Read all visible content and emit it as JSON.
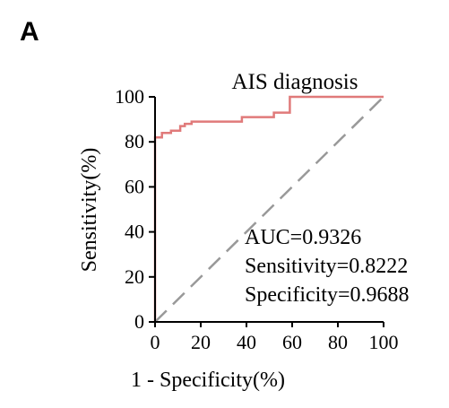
{
  "panel_label": "A",
  "chart_data": {
    "type": "line",
    "title": "AIS diagnosis",
    "xlabel": "1 - Specificity(%)",
    "ylabel": "Sensitivity(%)",
    "xlim": [
      0,
      100
    ],
    "ylim": [
      0,
      100
    ],
    "xticks": [
      0,
      20,
      40,
      60,
      80,
      100
    ],
    "yticks": [
      0,
      20,
      40,
      60,
      80,
      100
    ],
    "grid": false,
    "series": [
      {
        "color": "#e07a7a",
        "x": [
          0,
          0,
          3,
          3,
          7,
          7,
          11,
          11,
          13,
          13,
          16,
          16,
          38,
          38,
          52,
          52,
          59,
          59,
          100
        ],
        "y": [
          0,
          82,
          82,
          84,
          84,
          85,
          85,
          87,
          87,
          88,
          88,
          89,
          89,
          91,
          91,
          93,
          93,
          100,
          100
        ]
      },
      {
        "style": "dashed",
        "color": "#999999",
        "x": [
          0,
          100
        ],
        "y": [
          0,
          100
        ]
      }
    ],
    "annotations": [
      "AUC=0.9326",
      "Sensitivity=0.8222",
      "Specificity=0.9688"
    ]
  }
}
